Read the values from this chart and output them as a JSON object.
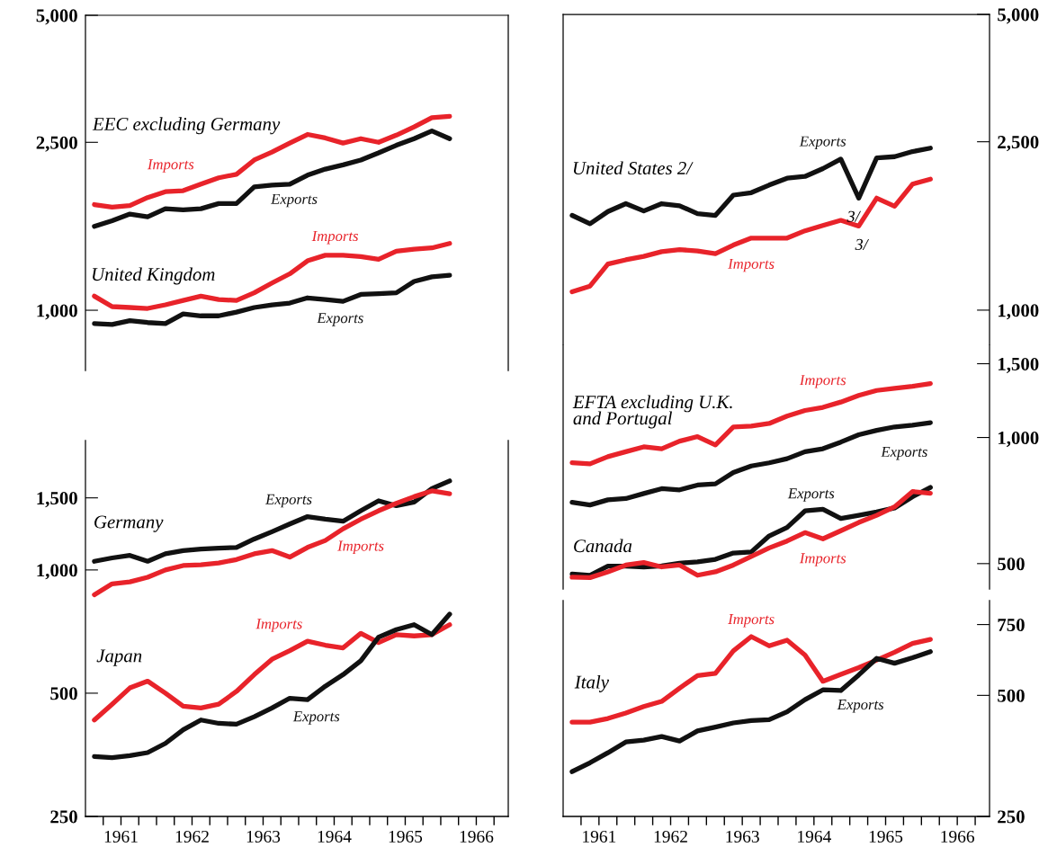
{
  "chart_data": [
    {
      "type": "line",
      "x": [
        1961.125,
        1961.375,
        1961.625,
        1961.875,
        1962.125,
        1962.375,
        1962.625,
        1962.875,
        1963.125,
        1963.375,
        1963.625,
        1963.875,
        1964.125,
        1964.375,
        1964.625,
        1964.875,
        1965.125,
        1965.375,
        1965.625,
        1965.875,
        1966.125
      ],
      "xlim": [
        1961,
        1966.95
      ],
      "ylim": [
        720,
        5000
      ],
      "log": "y",
      "tick_labels": "y",
      "yticks": [
        {
          "value": 5000,
          "label": "5,000"
        },
        {
          "value": 2500,
          "label": "2,500"
        },
        {
          "value": 1000,
          "label": "1,000"
        }
      ],
      "series": [
        {
          "name": "Imports",
          "color": "#e8232a",
          "values": [
            1780,
            1755,
            1770,
            1850,
            1910,
            1920,
            1990,
            2060,
            2100,
            2270,
            2370,
            2490,
            2610,
            2560,
            2490,
            2550,
            2500,
            2600,
            2720,
            2860,
            2880
          ]
        },
        {
          "name": "Exports",
          "color": "#111111",
          "values": [
            1580,
            1630,
            1690,
            1665,
            1740,
            1730,
            1740,
            1790,
            1790,
            1960,
            1980,
            1990,
            2090,
            2160,
            2210,
            2270,
            2360,
            2460,
            2550,
            2660,
            2550
          ]
        },
        {
          "name": "Imports",
          "color": "#e8232a",
          "values": [
            1080,
            1020,
            1015,
            1010,
            1030,
            1055,
            1080,
            1060,
            1055,
            1100,
            1160,
            1220,
            1310,
            1350,
            1350,
            1340,
            1320,
            1380,
            1395,
            1405,
            1440
          ]
        },
        {
          "name": "Exports",
          "color": "#111111",
          "values": [
            930,
            925,
            945,
            935,
            930,
            980,
            970,
            970,
            990,
            1015,
            1030,
            1040,
            1070,
            1060,
            1050,
            1090,
            1095,
            1100,
            1170,
            1200,
            1210
          ]
        }
      ],
      "annotations": [
        "EEC excluding Germany",
        "United Kingdom"
      ]
    },
    {
      "type": "line",
      "x": [
        1961.125,
        1961.375,
        1961.625,
        1961.875,
        1962.125,
        1962.375,
        1962.625,
        1962.875,
        1963.125,
        1963.375,
        1963.625,
        1963.875,
        1964.125,
        1964.375,
        1964.625,
        1964.875,
        1965.125,
        1965.375,
        1965.625,
        1965.875,
        1966.125
      ],
      "xlim": [
        1961,
        1966.95
      ],
      "ylim": [
        250,
        2070
      ],
      "log": "y",
      "xticks": [
        {
          "value": 1961.25,
          "label": null
        },
        {
          "value": 1961.5,
          "label": "1961"
        },
        {
          "value": 1961.75,
          "label": null
        },
        {
          "value": 1962,
          "label": null
        },
        {
          "value": 1962.25,
          "label": null
        },
        {
          "value": 1962.5,
          "label": "1962"
        },
        {
          "value": 1962.75,
          "label": null
        },
        {
          "value": 1963,
          "label": null
        },
        {
          "value": 1963.25,
          "label": null
        },
        {
          "value": 1963.5,
          "label": "1963"
        },
        {
          "value": 1963.75,
          "label": null
        },
        {
          "value": 1964,
          "label": null
        },
        {
          "value": 1964.25,
          "label": null
        },
        {
          "value": 1964.5,
          "label": "1964"
        },
        {
          "value": 1964.75,
          "label": null
        },
        {
          "value": 1965,
          "label": null
        },
        {
          "value": 1965.25,
          "label": null
        },
        {
          "value": 1965.5,
          "label": "1965"
        },
        {
          "value": 1965.75,
          "label": null
        },
        {
          "value": 1966,
          "label": null
        },
        {
          "value": 1966.25,
          "label": null
        },
        {
          "value": 1966.5,
          "label": "1966"
        },
        {
          "value": 1966.75,
          "label": null
        }
      ],
      "yticks": [
        {
          "value": 1500,
          "label": "1,500"
        },
        {
          "value": 1000,
          "label": "1,000"
        },
        500,
        250
      ],
      "series": [
        {
          "name": "Exports",
          "color": "#111111",
          "values": [
            1050,
            1070,
            1085,
            1050,
            1095,
            1115,
            1125,
            1130,
            1135,
            1190,
            1240,
            1295,
            1350,
            1330,
            1315,
            1395,
            1475,
            1435,
            1465,
            1580,
            1650
          ]
        },
        {
          "name": "Imports",
          "color": "#e8232a",
          "values": [
            870,
            925,
            935,
            960,
            1000,
            1025,
            1030,
            1040,
            1060,
            1095,
            1115,
            1075,
            1135,
            1180,
            1260,
            1330,
            1395,
            1455,
            1510,
            1560,
            1535
          ]
        },
        {
          "name": "Imports",
          "color": "#e8232a",
          "values": [
            430,
            470,
            515,
            535,
            500,
            465,
            460,
            470,
            505,
            555,
            605,
            635,
            670,
            655,
            645,
            700,
            665,
            695,
            690,
            695,
            735
          ]
        },
        {
          "name": "Exports",
          "color": "#111111",
          "values": [
            350,
            348,
            352,
            358,
            377,
            407,
            430,
            422,
            420,
            438,
            460,
            486,
            482,
            520,
            555,
            600,
            685,
            715,
            735,
            695,
            780
          ]
        }
      ],
      "annotations": [
        "Germany",
        "Japan"
      ]
    },
    {
      "type": "line",
      "x": [
        1961.125,
        1961.375,
        1961.625,
        1961.875,
        1962.125,
        1962.375,
        1962.625,
        1962.875,
        1963.125,
        1963.375,
        1963.625,
        1963.875,
        1964.125,
        1964.375,
        1964.625,
        1964.875,
        1965.125,
        1965.375,
        1965.625,
        1965.875,
        1966.125
      ],
      "xlim": [
        1961,
        1966.95
      ],
      "ylim": [
        830,
        5000
      ],
      "log": "y",
      "tick_labels": "y",
      "yticks": [
        {
          "value": 5000,
          "label": "5,000"
        },
        {
          "value": 2500,
          "label": "2,500"
        },
        {
          "value": 1000,
          "label": "1,000"
        }
      ],
      "series": [
        {
          "name": "Exports",
          "color": "#111111",
          "values": [
            1675,
            1600,
            1710,
            1785,
            1715,
            1785,
            1765,
            1690,
            1675,
            1870,
            1895,
            1975,
            2050,
            2070,
            2160,
            2275,
            1840,
            2290,
            2305,
            2370,
            2415
          ]
        },
        {
          "name": "Imports",
          "color": "#e8232a",
          "values": [
            1105,
            1140,
            1285,
            1315,
            1340,
            1375,
            1390,
            1380,
            1360,
            1425,
            1480,
            1480,
            1480,
            1540,
            1585,
            1630,
            1580,
            1840,
            1760,
            1985,
            2040
          ]
        }
      ],
      "annotations": [
        "United States 2/",
        {
          "text": "3/",
          "x": 1965.125,
          "y": 1840
        },
        {
          "text": "3/",
          "x": 1965.125,
          "y": 1580
        }
      ]
    },
    {
      "type": "line",
      "x": [
        1961.125,
        1961.375,
        1961.625,
        1961.875,
        1962.125,
        1962.375,
        1962.625,
        1962.875,
        1963.125,
        1963.375,
        1963.625,
        1963.875,
        1964.125,
        1964.375,
        1964.625,
        1964.875,
        1965.125,
        1965.375,
        1965.625,
        1965.875,
        1966.125
      ],
      "xlim": [
        1961,
        1966.95
      ],
      "ylim": [
        435,
        1660
      ],
      "log": "y",
      "tick_labels": "y",
      "yticks": [
        {
          "value": 1500,
          "label": "1,500"
        },
        {
          "value": 1000,
          "label": "1,000"
        },
        500
      ],
      "series": [
        {
          "name": "Imports",
          "color": "#e8232a",
          "values": [
            870,
            865,
            900,
            925,
            950,
            940,
            980,
            1005,
            960,
            1060,
            1065,
            1080,
            1125,
            1160,
            1180,
            1215,
            1260,
            1295,
            1310,
            1325,
            1345
          ]
        },
        {
          "name": "Exports",
          "color": "#111111",
          "values": [
            700,
            690,
            710,
            715,
            735,
            755,
            750,
            770,
            775,
            825,
            855,
            870,
            890,
            925,
            940,
            975,
            1015,
            1040,
            1060,
            1070,
            1085
          ]
        },
        {
          "name": "Exports",
          "color": "#111111",
          "values": [
            472,
            469,
            493,
            493,
            491,
            494,
            501,
            505,
            512,
            530,
            533,
            582,
            610,
            668,
            674,
            641,
            652,
            664,
            679,
            722,
            760
          ]
        },
        {
          "name": "Imports",
          "color": "#e8232a",
          "values": [
            464,
            463,
            478,
            496,
            503,
            491,
            496,
            469,
            478,
            496,
            520,
            545,
            566,
            593,
            573,
            599,
            627,
            652,
            683,
            743,
            736
          ]
        }
      ],
      "annotations": [
        "EFTA excluding U.K.\nand Portugal",
        "Canada"
      ]
    },
    {
      "type": "line",
      "x": [
        1961.125,
        1961.375,
        1961.625,
        1961.875,
        1962.125,
        1962.375,
        1962.625,
        1962.875,
        1963.125,
        1963.375,
        1963.625,
        1963.875,
        1964.125,
        1964.375,
        1964.625,
        1964.875,
        1965.125,
        1965.375,
        1965.625,
        1965.875,
        1966.125
      ],
      "xlim": [
        1961,
        1966.95
      ],
      "ylim": [
        250,
        860
      ],
      "log": "y",
      "xticks": [
        {
          "value": 1961.25,
          "label": null
        },
        {
          "value": 1961.5,
          "label": "1961"
        },
        {
          "value": 1961.75,
          "label": null
        },
        {
          "value": 1962,
          "label": null
        },
        {
          "value": 1962.25,
          "label": null
        },
        {
          "value": 1962.5,
          "label": "1962"
        },
        {
          "value": 1962.75,
          "label": null
        },
        {
          "value": 1963,
          "label": null
        },
        {
          "value": 1963.25,
          "label": null
        },
        {
          "value": 1963.5,
          "label": "1963"
        },
        {
          "value": 1963.75,
          "label": null
        },
        {
          "value": 1964,
          "label": null
        },
        {
          "value": 1964.25,
          "label": null
        },
        {
          "value": 1964.5,
          "label": "1964"
        },
        {
          "value": 1964.75,
          "label": null
        },
        {
          "value": 1965,
          "label": null
        },
        {
          "value": 1965.25,
          "label": null
        },
        {
          "value": 1965.5,
          "label": "1965"
        },
        {
          "value": 1965.75,
          "label": null
        },
        {
          "value": 1966,
          "label": null
        },
        {
          "value": 1966.25,
          "label": null
        },
        {
          "value": 1966.5,
          "label": "1966"
        },
        {
          "value": 1966.75,
          "label": null
        }
      ],
      "yticks": [
        750,
        500,
        250
      ],
      "series": [
        {
          "name": "Imports",
          "color": "#e8232a",
          "values": [
            429,
            429,
            438,
            452,
            469,
            483,
            521,
            560,
            567,
            645,
            700,
            664,
            686,
            630,
            542,
            564,
            586,
            612,
            640,
            673,
            689
          ]
        },
        {
          "name": "Exports",
          "color": "#111111",
          "values": [
            323,
            340,
            360,
            383,
            387,
            395,
            385,
            408,
            417,
            427,
            433,
            435,
            455,
            488,
            516,
            514,
            562,
            618,
            601,
            620,
            642
          ]
        }
      ],
      "annotations": [
        "Italy"
      ]
    }
  ]
}
